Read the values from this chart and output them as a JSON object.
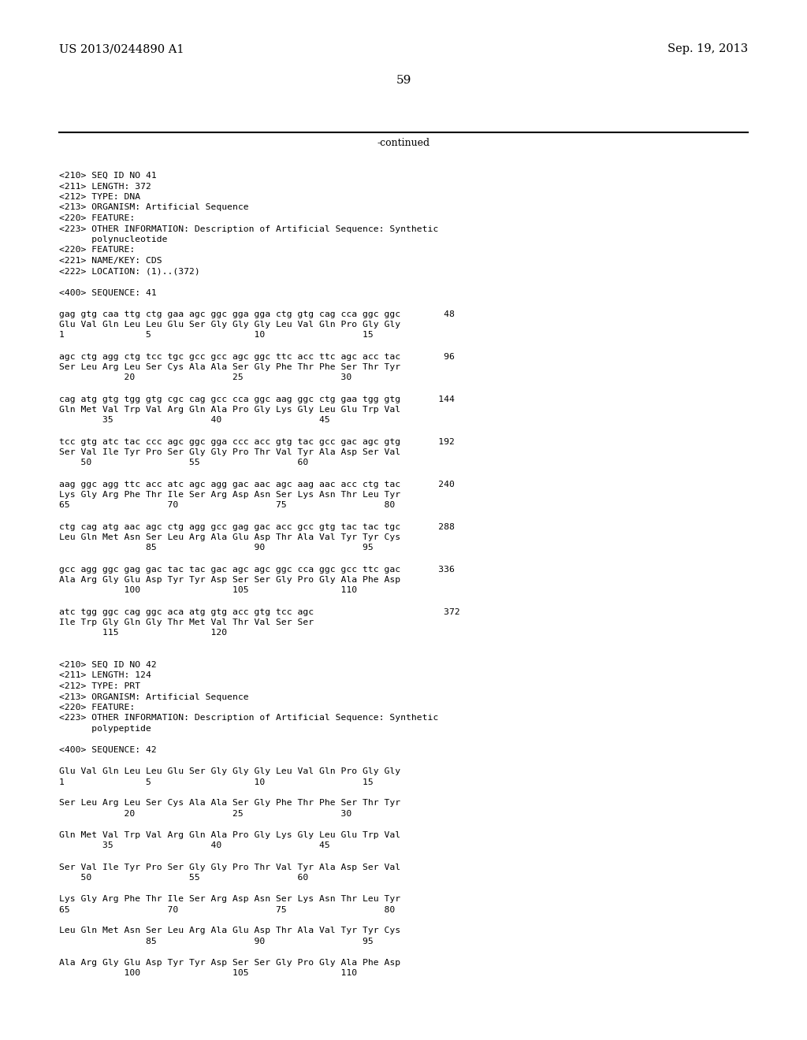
{
  "background_color": "#ffffff",
  "header_left": "US 2013/0244890 A1",
  "header_right": "Sep. 19, 2013",
  "page_number": "59",
  "continued_text": "-continued",
  "font_size": 8.2,
  "header_font_size": 10.5,
  "page_num_font_size": 11,
  "lines": [
    "<210> SEQ ID NO 41",
    "<211> LENGTH: 372",
    "<212> TYPE: DNA",
    "<213> ORGANISM: Artificial Sequence",
    "<220> FEATURE:",
    "<223> OTHER INFORMATION: Description of Artificial Sequence: Synthetic",
    "      polynucleotide",
    "<220> FEATURE:",
    "<221> NAME/KEY: CDS",
    "<222> LOCATION: (1)..(372)",
    "",
    "<400> SEQUENCE: 41",
    "",
    "gag gtg caa ttg ctg gaa agc ggc gga gga ctg gtg cag cca ggc ggc        48",
    "Glu Val Gln Leu Leu Glu Ser Gly Gly Gly Leu Val Gln Pro Gly Gly",
    "1               5                   10                  15",
    "",
    "agc ctg agg ctg tcc tgc gcc gcc agc ggc ttc acc ttc agc acc tac        96",
    "Ser Leu Arg Leu Ser Cys Ala Ala Ser Gly Phe Thr Phe Ser Thr Tyr",
    "            20                  25                  30",
    "",
    "cag atg gtg tgg gtg cgc cag gcc cca ggc aag ggc ctg gaa tgg gtg       144",
    "Gln Met Val Trp Val Arg Gln Ala Pro Gly Lys Gly Leu Glu Trp Val",
    "        35                  40                  45",
    "",
    "tcc gtg atc tac ccc agc ggc gga ccc acc gtg tac gcc gac agc gtg       192",
    "Ser Val Ile Tyr Pro Ser Gly Gly Pro Thr Val Tyr Ala Asp Ser Val",
    "    50                  55                  60",
    "",
    "aag ggc agg ttc acc atc agc agg gac aac agc aag aac acc ctg tac       240",
    "Lys Gly Arg Phe Thr Ile Ser Arg Asp Asn Ser Lys Asn Thr Leu Tyr",
    "65                  70                  75                  80",
    "",
    "ctg cag atg aac agc ctg agg gcc gag gac acc gcc gtg tac tac tgc       288",
    "Leu Gln Met Asn Ser Leu Arg Ala Glu Asp Thr Ala Val Tyr Tyr Cys",
    "                85                  90                  95",
    "",
    "gcc agg ggc gag gac tac tac gac agc agc ggc cca ggc gcc ttc gac       336",
    "Ala Arg Gly Glu Asp Tyr Tyr Asp Ser Ser Gly Pro Gly Ala Phe Asp",
    "            100                 105                 110",
    "",
    "atc tgg ggc cag ggc aca atg gtg acc gtg tcc agc                        372",
    "Ile Trp Gly Gln Gly Thr Met Val Thr Val Ser Ser",
    "        115                 120",
    "",
    "",
    "<210> SEQ ID NO 42",
    "<211> LENGTH: 124",
    "<212> TYPE: PRT",
    "<213> ORGANISM: Artificial Sequence",
    "<220> FEATURE:",
    "<223> OTHER INFORMATION: Description of Artificial Sequence: Synthetic",
    "      polypeptide",
    "",
    "<400> SEQUENCE: 42",
    "",
    "Glu Val Gln Leu Leu Glu Ser Gly Gly Gly Leu Val Gln Pro Gly Gly",
    "1               5                   10                  15",
    "",
    "Ser Leu Arg Leu Ser Cys Ala Ala Ser Gly Phe Thr Phe Ser Thr Tyr",
    "            20                  25                  30",
    "",
    "Gln Met Val Trp Val Arg Gln Ala Pro Gly Lys Gly Leu Glu Trp Val",
    "        35                  40                  45",
    "",
    "Ser Val Ile Tyr Pro Ser Gly Gly Pro Thr Val Tyr Ala Asp Ser Val",
    "    50                  55                  60",
    "",
    "Lys Gly Arg Phe Thr Ile Ser Arg Asp Asn Ser Lys Asn Thr Leu Tyr",
    "65                  70                  75                  80",
    "",
    "Leu Gln Met Asn Ser Leu Arg Ala Glu Asp Thr Ala Val Tyr Tyr Cys",
    "                85                  90                  95",
    "",
    "Ala Arg Gly Glu Asp Tyr Tyr Asp Ser Ser Gly Pro Gly Ala Phe Asp",
    "            100                 105                 110"
  ]
}
